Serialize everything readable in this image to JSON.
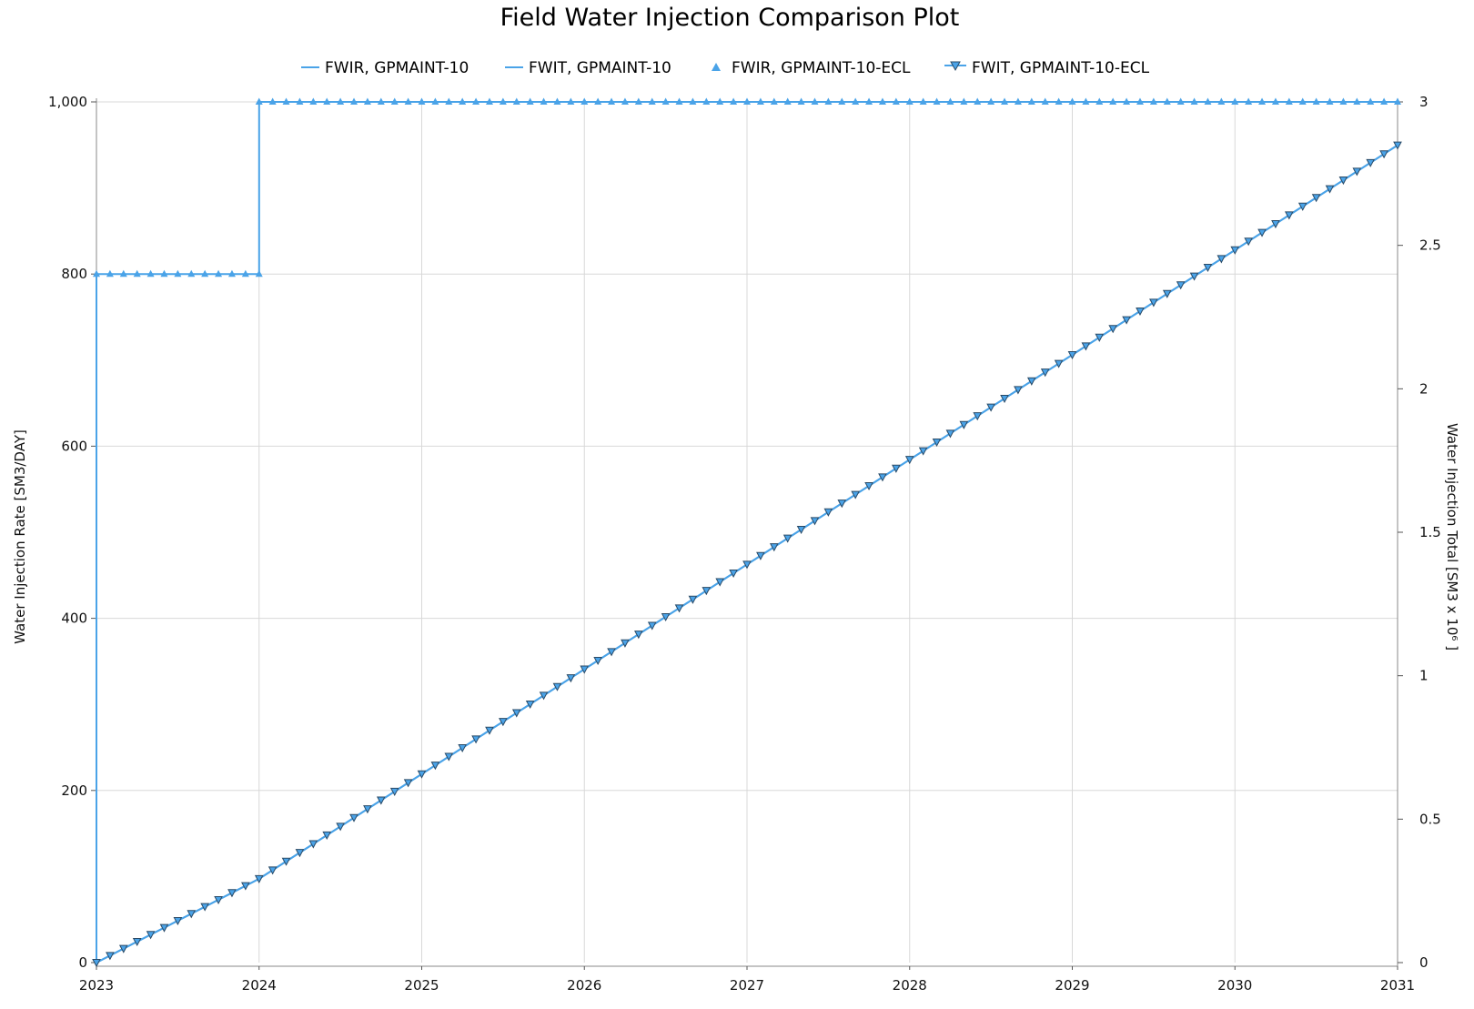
{
  "chart_data": {
    "type": "line",
    "title": "Field Water Injection Comparison Plot",
    "x_ticks": [
      "2023",
      "2024",
      "2025",
      "2026",
      "2027",
      "2028",
      "2029",
      "2030",
      "2031"
    ],
    "xlim": [
      2023,
      2031
    ],
    "y_left": {
      "label": "Water Injection Rate [SM3/DAY]",
      "ylim": [
        0,
        1000
      ],
      "ticks": [
        "0",
        "200",
        "400",
        "600",
        "800",
        "1,000"
      ],
      "tick_values": [
        0,
        200,
        400,
        600,
        800,
        1000
      ]
    },
    "y_right": {
      "label": "Water Injection Total [SM3 x 10⁶ ]",
      "ylim": [
        0,
        3
      ],
      "ticks": [
        "0",
        "0.5",
        "1",
        "1.5",
        "2",
        "2.5",
        "3"
      ],
      "tick_values": [
        0,
        0.5,
        1,
        1.5,
        2,
        2.5,
        3
      ]
    },
    "grid": true,
    "legend_position": "top-center",
    "series": [
      {
        "name": "FWIR, GPMAINT-10",
        "axis": "left",
        "style": "step-line",
        "color": "#4aa3e8",
        "x": [
          2023,
          2023,
          2024,
          2024,
          2031
        ],
        "values": [
          0,
          800,
          800,
          1000,
          1000
        ]
      },
      {
        "name": "FWIT, GPMAINT-10",
        "axis": "right",
        "style": "line",
        "color": "#4aa3e8",
        "x": [
          2023,
          2024,
          2031
        ],
        "values": [
          0,
          0.292,
          2.849
        ]
      },
      {
        "name": "FWIR, GPMAINT-10-ECL",
        "axis": "left",
        "style": "triangle-up-markers",
        "color": "#4aa3e8",
        "marker_interval": "monthly",
        "x": [
          2023,
          2024,
          2024,
          2031
        ],
        "values": [
          800,
          800,
          1000,
          1000
        ]
      },
      {
        "name": "FWIT, GPMAINT-10-ECL",
        "axis": "right",
        "style": "line-triangle-down-markers",
        "color": "#4aa3e8",
        "marker_interval": "monthly",
        "x": [
          2023,
          2024,
          2031
        ],
        "values": [
          0,
          0.292,
          2.849
        ]
      }
    ]
  }
}
